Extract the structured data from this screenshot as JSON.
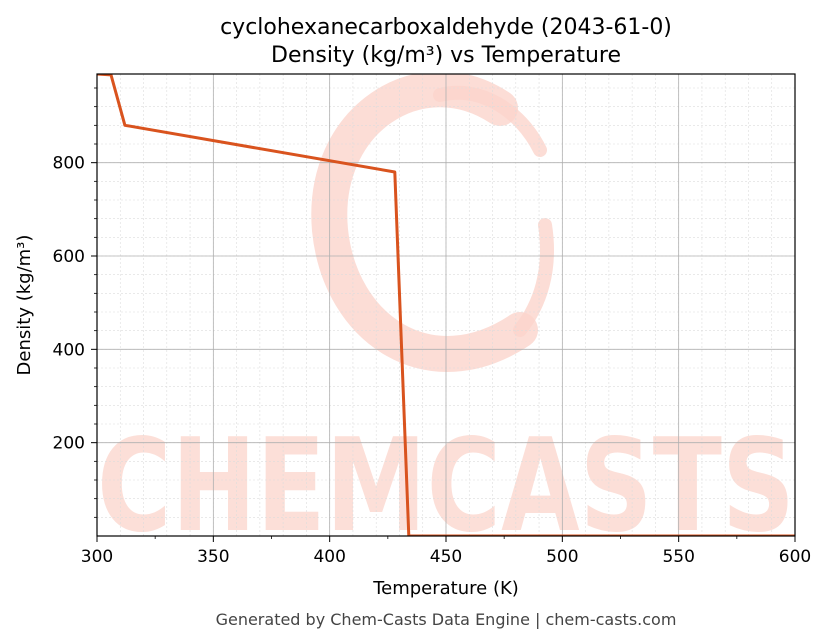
{
  "chart_data": {
    "type": "line",
    "title_line1": "cyclohexanecarboxaldehyde (2043-61-0)",
    "title_line2": "Density (kg/m³) vs Temperature",
    "xlabel": "Temperature (K)",
    "ylabel": "Density (kg/m³)",
    "xlim": [
      300,
      600
    ],
    "ylim": [
      0,
      990
    ],
    "x_ticks": [
      300,
      350,
      400,
      450,
      500,
      550,
      600
    ],
    "y_ticks": [
      200,
      400,
      600,
      800
    ],
    "grid": true,
    "line_color": "#d9531e",
    "series": [
      {
        "x": [
          300,
          306,
          312,
          428,
          434,
          600
        ],
        "y": [
          990,
          988,
          880,
          780,
          0,
          0
        ]
      }
    ]
  },
  "watermark": {
    "text": "CHEMCASTS",
    "color": "#fbd5cc"
  },
  "footer": "Generated by Chem-Casts Data Engine | chem-casts.com"
}
